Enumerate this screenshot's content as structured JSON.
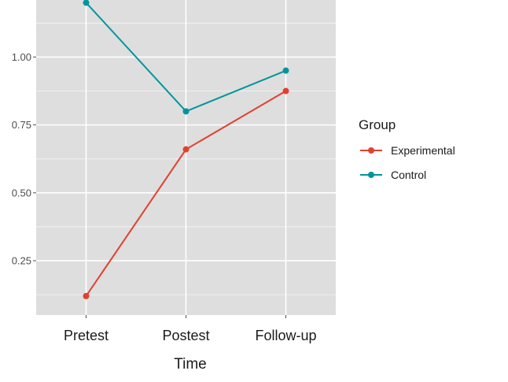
{
  "chart_data": {
    "type": "line",
    "title": "",
    "xlabel": "Time",
    "ylabel": "",
    "categories": [
      "Pretest",
      "Postest",
      "Follow-up"
    ],
    "yticks": [
      "0.25",
      "0.50",
      "0.75",
      "1.00"
    ],
    "ytick_values": [
      0.25,
      0.5,
      0.75,
      1.0
    ],
    "ylim": [
      0.05,
      1.21
    ],
    "grid": true,
    "legend": {
      "title": "Group",
      "position": "right"
    },
    "series": [
      {
        "name": "Experimental",
        "color": "#e2412f",
        "values": [
          0.12,
          0.66,
          0.875
        ]
      },
      {
        "name": "Control",
        "color": "#00959b",
        "values": [
          1.2,
          0.8,
          0.95
        ]
      }
    ],
    "panel_background": "#dedede",
    "gridline_color": "#ffffff"
  }
}
